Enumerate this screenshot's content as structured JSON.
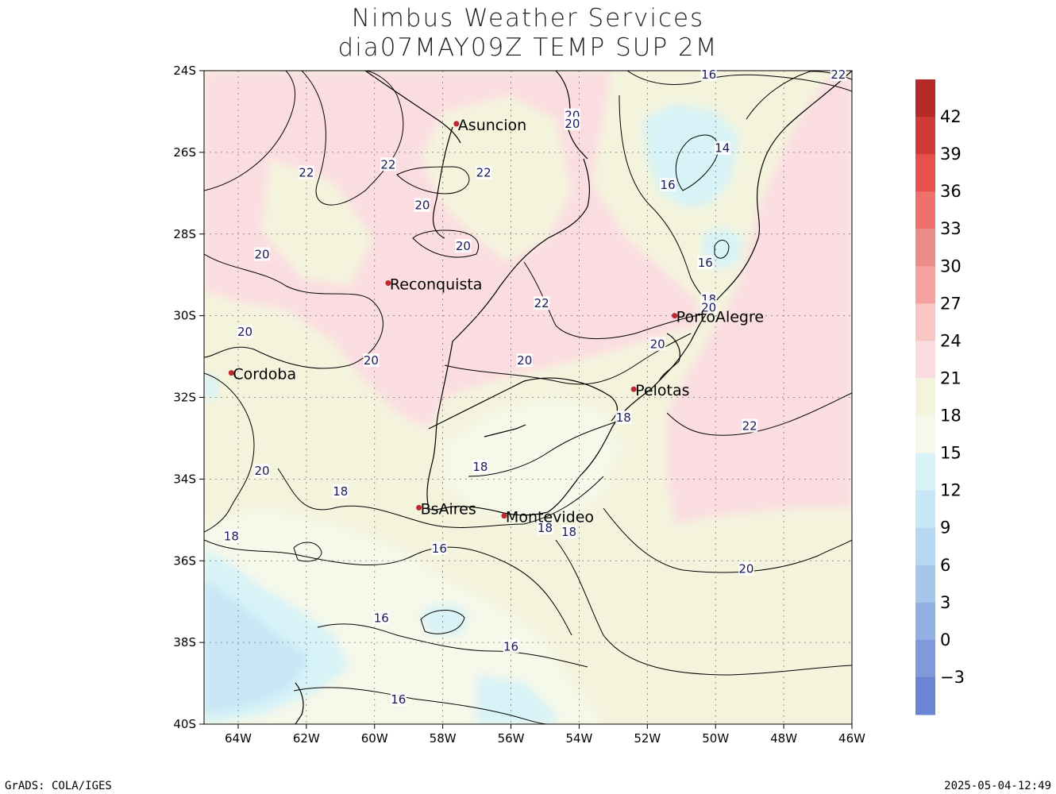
{
  "header": {
    "title_line1": "Nimbus Weather Services",
    "title_line2": "dia07MAY09Z TEMP SUP 2M"
  },
  "footer": {
    "left": "GrADS: COLA/IGES",
    "right": "2025-05-04-12:49"
  },
  "map": {
    "lon_range": [
      -65,
      -46
    ],
    "lat_range": [
      -40,
      -24
    ],
    "lat_ticks": [
      "24S",
      "26S",
      "28S",
      "30S",
      "32S",
      "34S",
      "36S",
      "38S",
      "40S"
    ],
    "lon_ticks": [
      "64W",
      "62W",
      "60W",
      "58W",
      "56W",
      "54W",
      "52W",
      "50W",
      "48W",
      "46W"
    ],
    "grid": true,
    "colors": {
      "warm_zone": "#fbdde1",
      "mild_zone": "#f4f4dd",
      "cool_zone": "#f6f8ea",
      "cold_zone": "#d7f3f7",
      "colder_zone": "#c7e6f6"
    },
    "cities": [
      {
        "name": "Asuncion",
        "lon": -57.6,
        "lat": -25.3
      },
      {
        "name": "Reconquista",
        "lon": -59.6,
        "lat": -29.2
      },
      {
        "name": "PortoAlegre",
        "lon": -51.2,
        "lat": -30.0
      },
      {
        "name": "Cordoba",
        "lon": -64.2,
        "lat": -31.4
      },
      {
        "name": "Pelotas",
        "lon": -52.4,
        "lat": -31.8
      },
      {
        "name": "BsAires",
        "lon": -58.7,
        "lat": -34.7
      },
      {
        "name": "Montevideo",
        "lon": -56.2,
        "lat": -34.9
      }
    ],
    "contour_labels": [
      {
        "text": "16",
        "lon": -50.2,
        "lat": -24.1
      },
      {
        "text": "22",
        "lon": -46.4,
        "lat": -24.1
      },
      {
        "text": "20",
        "lon": -54.2,
        "lat": -25.1
      },
      {
        "text": "20",
        "lon": -54.2,
        "lat": -25.3
      },
      {
        "text": "14",
        "lon": -49.8,
        "lat": -25.9
      },
      {
        "text": "22",
        "lon": -62.0,
        "lat": -26.5
      },
      {
        "text": "22",
        "lon": -59.6,
        "lat": -26.3
      },
      {
        "text": "22",
        "lon": -56.8,
        "lat": -26.5
      },
      {
        "text": "16",
        "lon": -51.4,
        "lat": -26.8
      },
      {
        "text": "20",
        "lon": -58.6,
        "lat": -27.3
      },
      {
        "text": "20",
        "lon": -57.4,
        "lat": -28.3
      },
      {
        "text": "20",
        "lon": -63.3,
        "lat": -28.5
      },
      {
        "text": "16",
        "lon": -50.3,
        "lat": -28.7
      },
      {
        "text": "18",
        "lon": -50.2,
        "lat": -29.6
      },
      {
        "text": "20",
        "lon": -50.2,
        "lat": -29.8
      },
      {
        "text": "22",
        "lon": -55.1,
        "lat": -29.7
      },
      {
        "text": "20",
        "lon": -63.8,
        "lat": -30.4
      },
      {
        "text": "20",
        "lon": -51.7,
        "lat": -30.7
      },
      {
        "text": "20",
        "lon": -60.1,
        "lat": -31.1
      },
      {
        "text": "20",
        "lon": -55.6,
        "lat": -31.1
      },
      {
        "text": "18",
        "lon": -52.7,
        "lat": -32.5
      },
      {
        "text": "22",
        "lon": -49.0,
        "lat": -32.7
      },
      {
        "text": "18",
        "lon": -56.9,
        "lat": -33.7
      },
      {
        "text": "20",
        "lon": -63.3,
        "lat": -33.8
      },
      {
        "text": "18",
        "lon": -61.0,
        "lat": -34.3
      },
      {
        "text": "18",
        "lon": -55.0,
        "lat": -35.2
      },
      {
        "text": "18",
        "lon": -54.3,
        "lat": -35.3
      },
      {
        "text": "18",
        "lon": -64.2,
        "lat": -35.4
      },
      {
        "text": "16",
        "lon": -58.1,
        "lat": -35.7
      },
      {
        "text": "20",
        "lon": -49.1,
        "lat": -36.2
      },
      {
        "text": "16",
        "lon": -59.8,
        "lat": -37.4
      },
      {
        "text": "16",
        "lon": -56.0,
        "lat": -38.1
      },
      {
        "text": "16",
        "lon": -59.3,
        "lat": -39.4
      }
    ]
  },
  "colorbar": {
    "labels": [
      "42",
      "39",
      "36",
      "33",
      "30",
      "27",
      "24",
      "21",
      "18",
      "15",
      "12",
      "9",
      "6",
      "3",
      "0",
      "−3"
    ],
    "colors": [
      "#b52a28",
      "#cf3b37",
      "#e8504c",
      "#ef716d",
      "#ea8c89",
      "#f5a3a0",
      "#fac6c3",
      "#fbdde1",
      "#f4f4dd",
      "#f6f8ea",
      "#d7f3f7",
      "#c7e6f6",
      "#b7d8f2",
      "#a6c6ea",
      "#93b0e2",
      "#7f99da",
      "#6c84d4"
    ]
  }
}
